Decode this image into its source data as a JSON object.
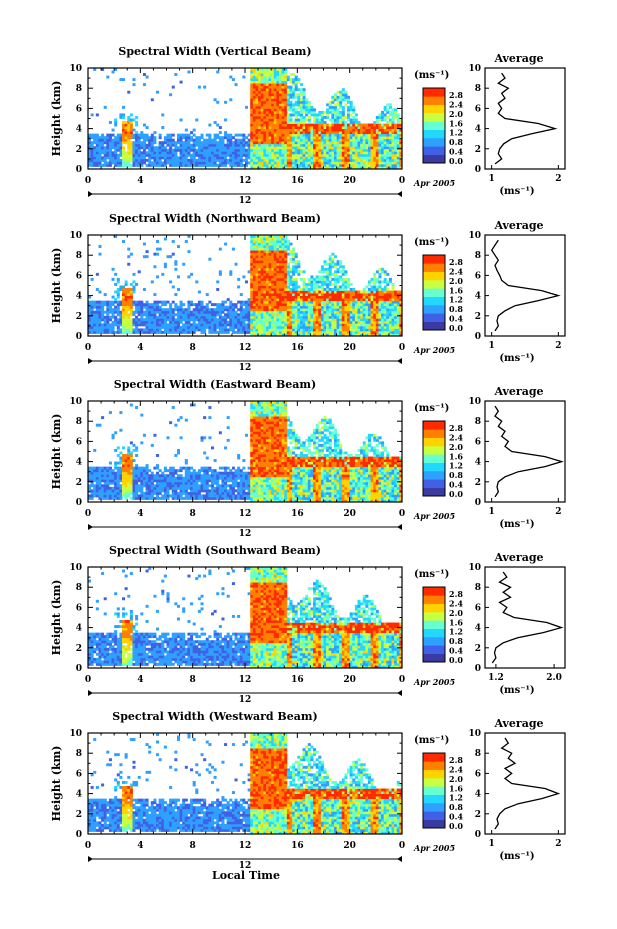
{
  "colorbar": {
    "unit_label": "(ms⁻¹)",
    "tick_labels": [
      "2.8",
      "2.4",
      "2.0",
      "1.6",
      "1.2",
      "0.8",
      "0.4",
      "0.0"
    ],
    "colors": [
      "#3a3aa0",
      "#4060e6",
      "#2ea0ff",
      "#22d8ff",
      "#66ffd0",
      "#c8ff40",
      "#ffd200",
      "#ff8000",
      "#ff2a00"
    ]
  },
  "x_axis": {
    "ticks": [
      "0",
      "4",
      "8",
      "12",
      "16",
      "20",
      "0"
    ],
    "day_label": "12",
    "month_label": "Apr 2005",
    "label": "Local Time"
  },
  "y_axis": {
    "label": "Height (km)",
    "ticks": [
      "0",
      "2",
      "4",
      "6",
      "8",
      "10"
    ]
  },
  "chart_data": [
    {
      "type": "heatmap",
      "title": "Spectral Width (Vertical Beam)",
      "xlim": [
        0,
        24
      ],
      "ylim": [
        0,
        10
      ],
      "profile": {
        "title": "Average",
        "xlabel": "(ms⁻¹)",
        "xticks": [
          "1",
          "2"
        ],
        "xlim": [
          0.9,
          2.1
        ],
        "heights": [
          0.5,
          1.0,
          1.5,
          2.0,
          2.5,
          3.0,
          3.5,
          4.0,
          4.5,
          5.0,
          5.5,
          6.0,
          6.5,
          7.0,
          7.5,
          8.0,
          8.5,
          9.0,
          9.5
        ],
        "values": [
          1.05,
          1.15,
          1.1,
          1.12,
          1.18,
          1.3,
          1.6,
          1.95,
          1.7,
          1.2,
          1.1,
          1.15,
          1.1,
          1.2,
          1.15,
          1.25,
          1.1,
          1.2,
          1.15
        ]
      }
    },
    {
      "type": "heatmap",
      "title": "Spectral Width (Northward Beam)",
      "xlim": [
        0,
        24
      ],
      "ylim": [
        0,
        10
      ],
      "profile": {
        "title": "Average",
        "xlabel": "(ms⁻¹)",
        "xticks": [
          "1",
          "2"
        ],
        "xlim": [
          0.9,
          2.1
        ],
        "heights": [
          0.5,
          1.0,
          1.5,
          2.0,
          2.5,
          3.0,
          3.5,
          4.0,
          4.5,
          5.0,
          5.5,
          6.0,
          6.5,
          7.0,
          7.5,
          8.0,
          8.5,
          9.0,
          9.5
        ],
        "values": [
          1.05,
          1.1,
          1.08,
          1.1,
          1.2,
          1.35,
          1.7,
          2.0,
          1.75,
          1.25,
          1.15,
          1.12,
          1.08,
          1.05,
          1.1,
          1.05,
          1.0,
          1.05,
          1.1
        ]
      }
    },
    {
      "type": "heatmap",
      "title": "Spectral Width (Eastward Beam)",
      "xlim": [
        0,
        24
      ],
      "ylim": [
        0,
        10
      ],
      "profile": {
        "title": "Average",
        "xlabel": "(ms⁻¹)",
        "xticks": [
          "1",
          "2"
        ],
        "xlim": [
          0.9,
          2.1
        ],
        "heights": [
          0.5,
          1.0,
          1.5,
          2.0,
          2.5,
          3.0,
          3.5,
          4.0,
          4.5,
          5.0,
          5.5,
          6.0,
          6.5,
          7.0,
          7.5,
          8.0,
          8.5,
          9.0,
          9.5
        ],
        "values": [
          1.05,
          1.1,
          1.08,
          1.1,
          1.2,
          1.4,
          1.8,
          2.05,
          1.8,
          1.3,
          1.2,
          1.25,
          1.15,
          1.2,
          1.1,
          1.15,
          1.05,
          1.1,
          1.05
        ]
      }
    },
    {
      "type": "heatmap",
      "title": "Spectral Width (Southward Beam)",
      "xlim": [
        0,
        24
      ],
      "ylim": [
        0,
        10
      ],
      "profile": {
        "title": "Average",
        "xlabel": "(ms⁻¹)",
        "xticks": [
          "1.2",
          "2.0"
        ],
        "xlim": [
          1.05,
          2.15
        ],
        "heights": [
          0.5,
          1.0,
          1.5,
          2.0,
          2.5,
          3.0,
          3.5,
          4.0,
          4.5,
          5.0,
          5.5,
          6.0,
          6.5,
          7.0,
          7.5,
          8.0,
          8.5,
          9.0,
          9.5
        ],
        "values": [
          1.15,
          1.2,
          1.18,
          1.2,
          1.3,
          1.5,
          1.85,
          2.1,
          1.9,
          1.45,
          1.3,
          1.35,
          1.25,
          1.4,
          1.3,
          1.4,
          1.25,
          1.35,
          1.3
        ]
      }
    },
    {
      "type": "heatmap",
      "title": "Spectral Width (Westward Beam)",
      "xlim": [
        0,
        24
      ],
      "ylim": [
        0,
        10
      ],
      "profile": {
        "title": "Average",
        "xlabel": "(ms⁻¹)",
        "xticks": [
          "1",
          "2"
        ],
        "xlim": [
          0.9,
          2.1
        ],
        "heights": [
          0.5,
          1.0,
          1.5,
          2.0,
          2.5,
          3.0,
          3.5,
          4.0,
          4.5,
          5.0,
          5.5,
          6.0,
          6.5,
          7.0,
          7.5,
          8.0,
          8.5,
          9.0,
          9.5
        ],
        "values": [
          1.05,
          1.1,
          1.08,
          1.12,
          1.2,
          1.4,
          1.75,
          2.0,
          1.8,
          1.3,
          1.2,
          1.3,
          1.2,
          1.35,
          1.25,
          1.3,
          1.15,
          1.25,
          1.2
        ]
      }
    }
  ]
}
